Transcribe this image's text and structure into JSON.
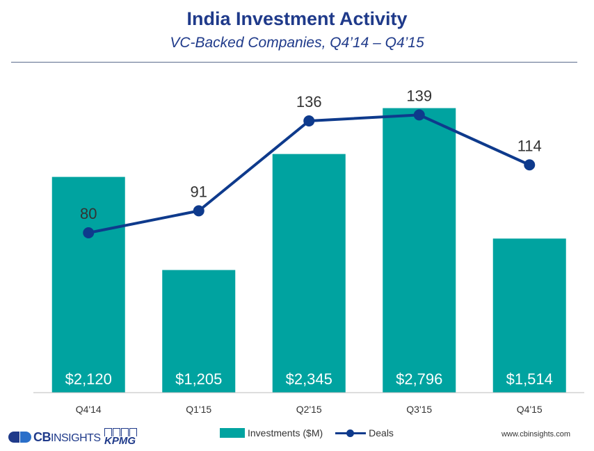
{
  "header": {
    "title": "India Investment Activity",
    "subtitle": "VC-Backed Companies, Q4’14 – Q4’15"
  },
  "chart_data": {
    "type": "bar",
    "categories": [
      "Q4'14",
      "Q1'15",
      "Q2'15",
      "Q3'15",
      "Q4'15"
    ],
    "series": [
      {
        "name": "Investments ($M)",
        "type": "bar",
        "values": [
          2120,
          1205,
          2345,
          2796,
          1514
        ],
        "labels": [
          "$2,120",
          "$1,205",
          "$2,345",
          "$2,796",
          "$1,514"
        ],
        "color": "#00a3a0"
      },
      {
        "name": "Deals",
        "type": "line",
        "values": [
          80,
          91,
          136,
          139,
          114
        ],
        "labels": [
          "80",
          "91",
          "136",
          "139",
          "114"
        ],
        "color": "#0e3a8c"
      }
    ],
    "bar_axis_range": [
      0,
      2800
    ],
    "line_axis_range": [
      0,
      160
    ],
    "legend_position": "bottom",
    "grid": false
  },
  "footer": {
    "brand_cb": "CB",
    "brand_cb_suffix": "INSIGHTS",
    "brand_kpmg": "KPMG",
    "website": "www.cbinsights.com"
  }
}
